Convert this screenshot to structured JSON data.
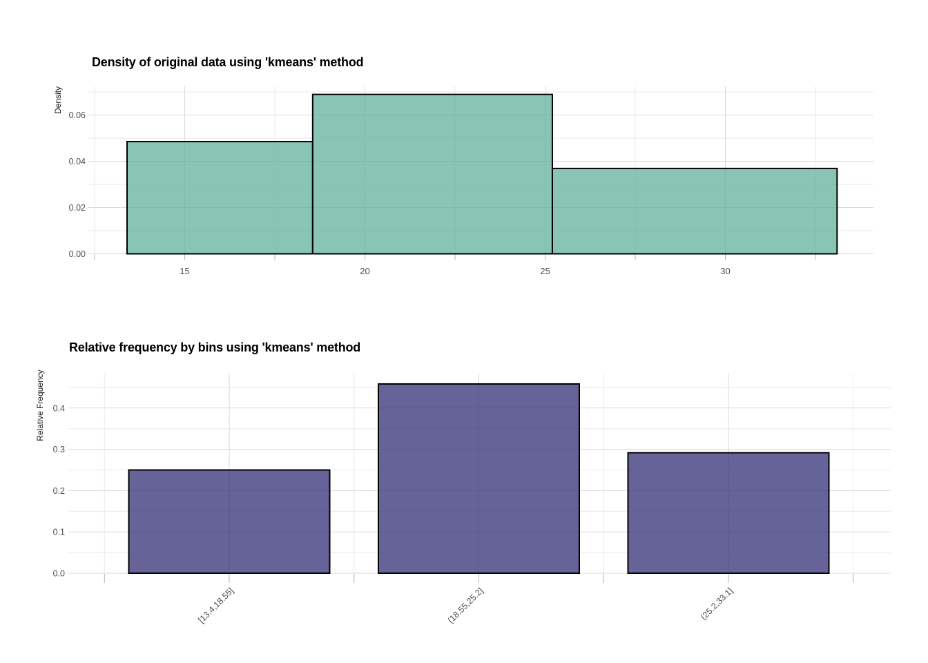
{
  "figure": {
    "background": "#ffffff",
    "theme": {
      "grid_major": "#d9d9d9",
      "grid_minor": "#e9e9e9",
      "tick_mark": "#b3b3b3",
      "tick_label_color": "#4d4d4d",
      "axis_title_color": "#1a1a1a",
      "title_color": "#000000",
      "bar_outline": "#000000"
    }
  },
  "chart_data": [
    {
      "type": "histogram",
      "title": "Density of original data using 'kmeans' method",
      "xlabel": "",
      "ylabel": "Density",
      "method": "kmeans",
      "bins": [
        {
          "range": [
            13.4,
            18.55
          ],
          "density": 0.0485
        },
        {
          "range": [
            18.55,
            25.2
          ],
          "density": 0.0689
        },
        {
          "range": [
            25.2,
            33.1
          ],
          "density": 0.0369
        }
      ],
      "x_tick_labels": [
        "15",
        "20",
        "25",
        "30"
      ],
      "x_tick_values": [
        15,
        20,
        25,
        30
      ],
      "x_minor_values": [
        12.5,
        17.5,
        22.5,
        27.5,
        32.5
      ],
      "y_tick_labels": [
        "0.00",
        "0.02",
        "0.04",
        "0.06"
      ],
      "y_tick_values": [
        0,
        0.02,
        0.04,
        0.06
      ],
      "y_minor_values": [
        0.01,
        0.03,
        0.05,
        0.07
      ],
      "xlim": [
        12.3,
        34.1
      ],
      "ylim": [
        0,
        0.0725
      ],
      "grid": true,
      "legend": false,
      "bar_fill": "rgba(90,174,151,0.72)"
    },
    {
      "type": "bar",
      "title": "Relative frequency by bins using 'kmeans' method",
      "xlabel": "",
      "ylabel": "Relative Frequency",
      "method": "kmeans",
      "categories": [
        "[13.4,18.55]",
        "(18.55,25.2]",
        "(25.2,33.1]"
      ],
      "values": [
        0.25,
        0.4583,
        0.2917
      ],
      "y_tick_labels": [
        "0.0",
        "0.1",
        "0.2",
        "0.3",
        "0.4"
      ],
      "y_tick_values": [
        0,
        0.1,
        0.2,
        0.3,
        0.4
      ],
      "y_minor_values": [
        0.05,
        0.15,
        0.25,
        0.35,
        0.45
      ],
      "ylim": [
        0,
        0.505
      ],
      "grid": true,
      "legend": false,
      "bar_fill": "rgba(51,47,119,0.75)"
    }
  ]
}
